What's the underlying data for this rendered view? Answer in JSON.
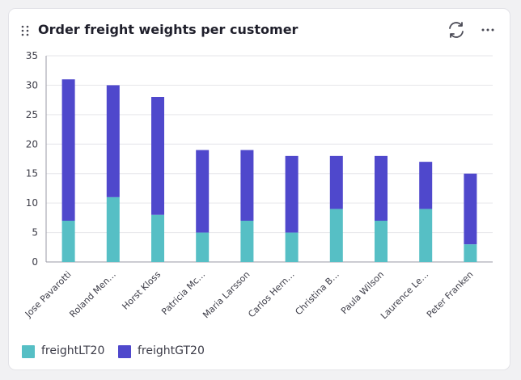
{
  "card": {
    "title": "Order freight weights per customer",
    "icons": {
      "drag": "drag-handle-icon",
      "refresh": "refresh-icon",
      "more": "more-horizontal-icon"
    }
  },
  "colors": {
    "freightLT20": "#56bfc5",
    "freightGT20": "#4f48cc",
    "grid": "#e6e6ea",
    "axis": "#9a9aa6",
    "tick": "#3d3d48"
  },
  "chart_data": {
    "type": "bar",
    "stacked": true,
    "title": "Order freight weights per customer",
    "xlabel": "",
    "ylabel": "",
    "ylim": [
      0,
      35
    ],
    "yticks": [
      0,
      5,
      10,
      15,
      20,
      25,
      30,
      35
    ],
    "categories": [
      "Jose Pavarotti",
      "Roland Men…",
      "Horst Kloss",
      "Patricia Mc…",
      "Maria Larsson",
      "Carlos Hern…",
      "Christina B…",
      "Paula Wilson",
      "Laurence Le…",
      "Peter Franken"
    ],
    "series": [
      {
        "name": "freightLT20",
        "values": [
          7,
          11,
          8,
          5,
          7,
          5,
          9,
          7,
          9,
          3
        ]
      },
      {
        "name": "freightGT20",
        "values": [
          24,
          19,
          20,
          14,
          12,
          13,
          9,
          11,
          8,
          12
        ]
      }
    ],
    "legend": "bottom-left"
  }
}
